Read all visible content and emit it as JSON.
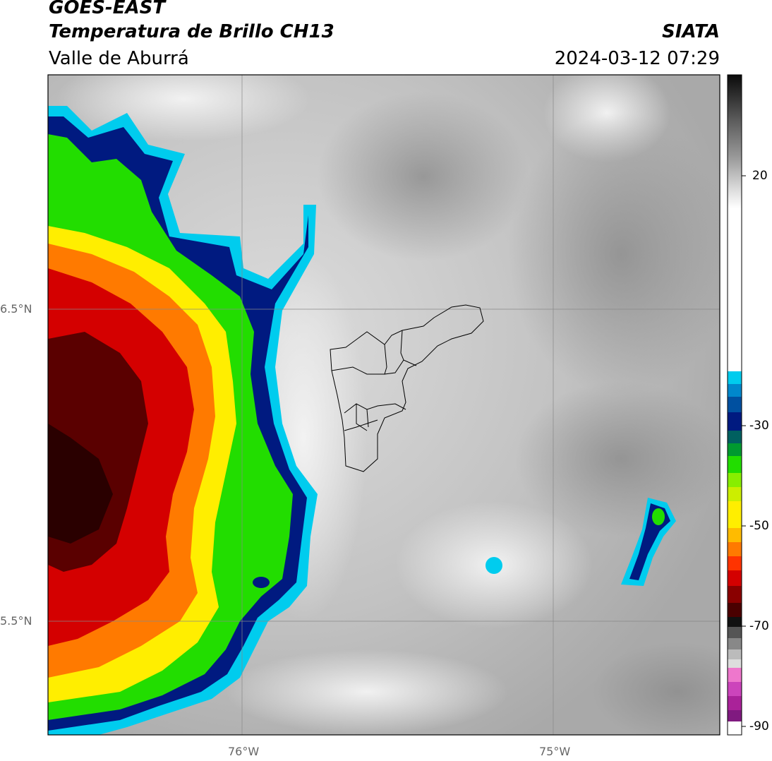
{
  "header": {
    "satellite": "GOES-EAST",
    "product": "Temperatura de Brillo CH13",
    "region": "Valle de Aburrá",
    "agency": "SIATA",
    "timestamp": "2024-03-12 07:29"
  },
  "axes": {
    "lat_labels": [
      "6.5°N",
      "5.5°N"
    ],
    "lon_labels": [
      "76°W",
      "75°W"
    ]
  },
  "colorbar": {
    "tick_labels": [
      "20",
      "-30",
      "-50",
      "-70",
      "-90"
    ]
  },
  "colors": {
    "cold_red": "#d40000",
    "dark_red": "#5a0000",
    "orange": "#ff7a00",
    "yellow": "#ffee00",
    "green": "#22dd00",
    "dark_blue": "#001a80",
    "cyan": "#00ccee",
    "magenta": "#cc44bb"
  }
}
